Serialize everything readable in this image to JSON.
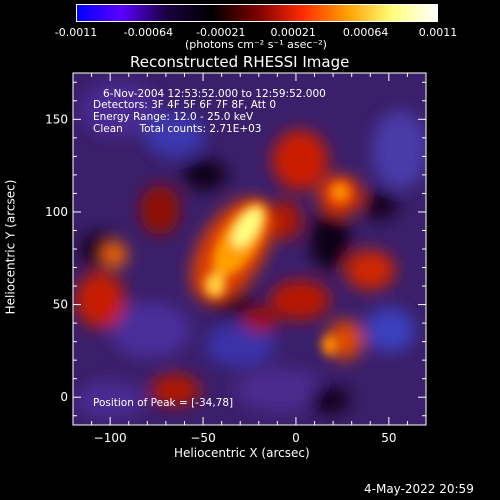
{
  "colorbar": {
    "ticks": [
      "-0.0011",
      "-0.00064",
      "-0.00021",
      "0.00021",
      "0.00064",
      "0.0011"
    ],
    "unit_label": "(photons cm⁻² s⁻¹ asec⁻²)",
    "stops": [
      "#0000ff",
      "#5a00ff",
      "#1a0040",
      "#000000",
      "#7a0000",
      "#ff2a00",
      "#ffa000",
      "#ffff7a",
      "#ffffff"
    ]
  },
  "chart_data": {
    "type": "heatmap",
    "title": "Reconstructed RHESSI Image",
    "xlabel": "Heliocentric X (arcsec)",
    "ylabel": "Heliocentric Y (arcsec)",
    "xlim": [
      -120,
      70
    ],
    "ylim": [
      -15,
      175
    ],
    "xticks": [
      -100,
      -50,
      0,
      50
    ],
    "yticks": [
      0,
      50,
      100,
      150
    ],
    "peak": [
      -34,
      78
    ],
    "annotations": [
      "6-Nov-2004 12:53:52.000 to 12:59:52.000",
      "Detectors: 3F 4F 5F 6F 7F 8F, Att 0",
      "Energy Range: 12.0 - 25.0 keV",
      "Clean     Total counts: 2.71E+03"
    ],
    "peak_label": "Position of Peak = [-34,78]"
  },
  "footer": {
    "date": "4-May-2022 20:59"
  }
}
